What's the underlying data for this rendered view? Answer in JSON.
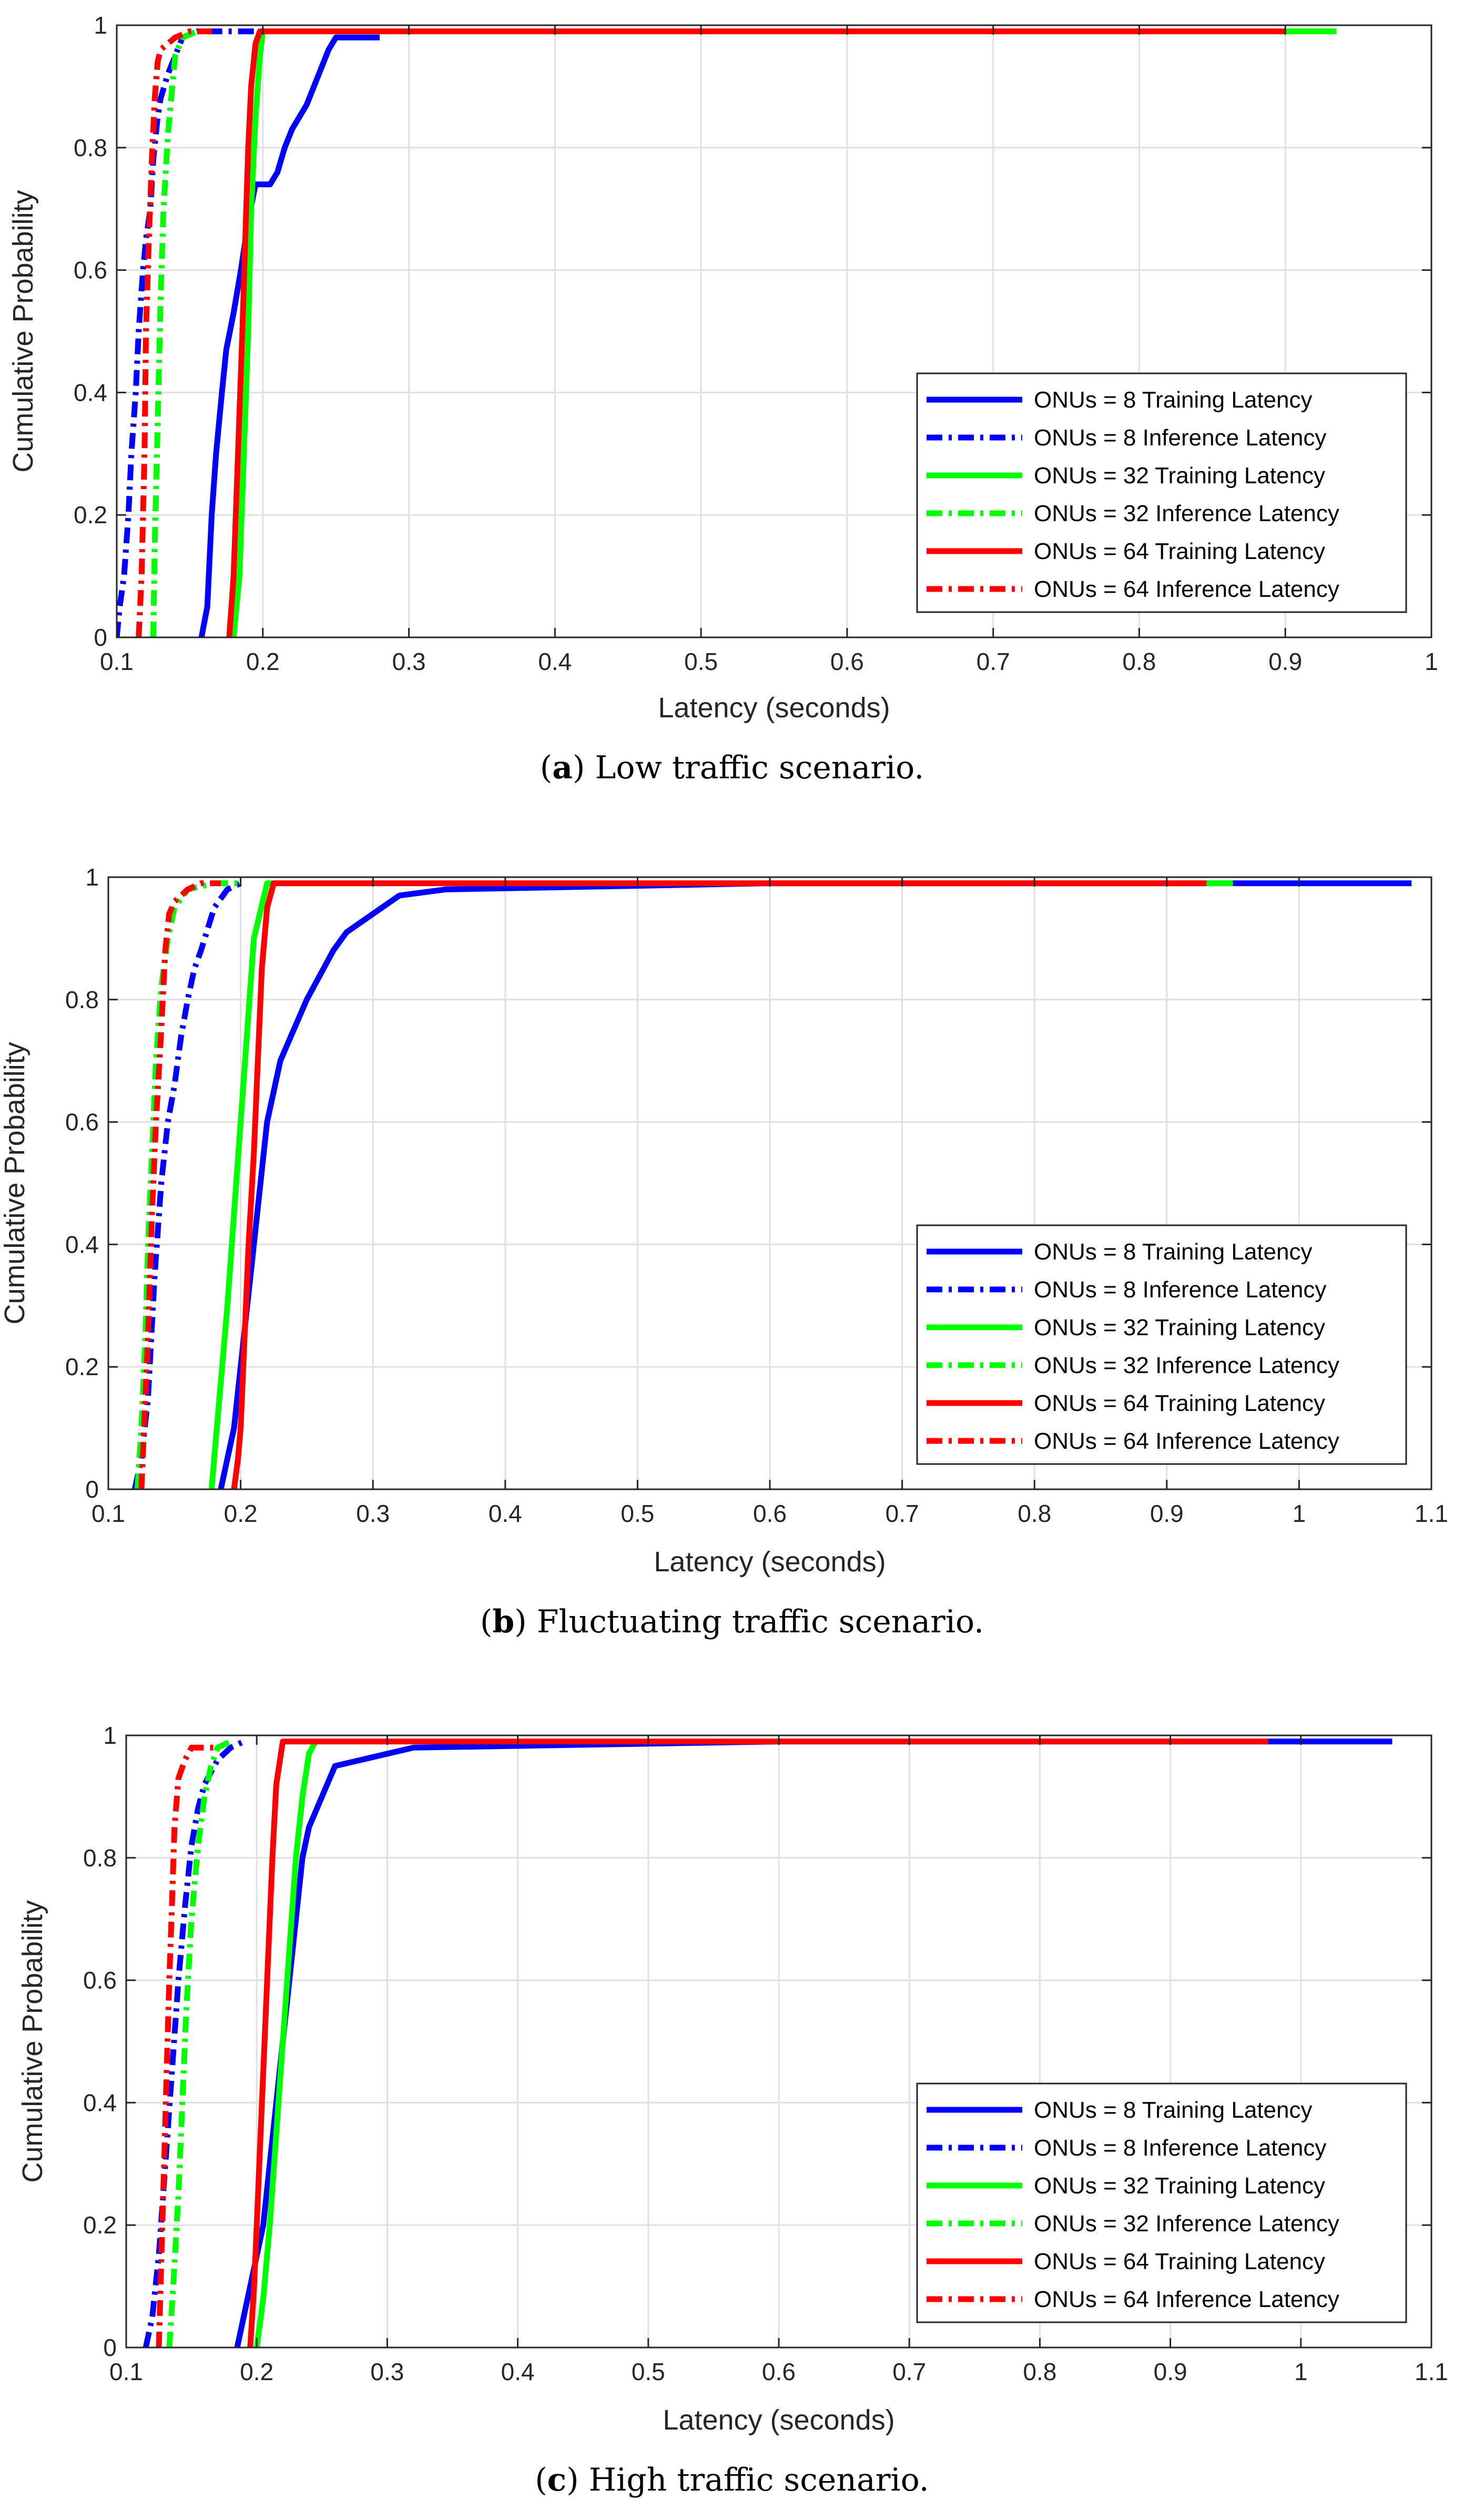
{
  "colors": {
    "blue": "#0000ff",
    "green": "#00ff00",
    "red": "#ff0000"
  },
  "chart_data": [
    {
      "type": "line",
      "title": "",
      "caption_letter": "a",
      "caption_text": " Low traffic scenario.",
      "xlabel": "Latency (seconds)",
      "ylabel": "Cumulative Probability",
      "xlim": [
        0.1,
        1.0
      ],
      "ylim": [
        0,
        1
      ],
      "xticks": [
        0.1,
        0.2,
        0.3,
        0.4,
        0.5,
        0.6,
        0.7,
        0.8,
        0.9,
        1
      ],
      "xticklabels": [
        "0.1",
        "0.2",
        "0.3",
        "0.4",
        "0.5",
        "0.6",
        "0.7",
        "0.8",
        "0.9",
        "1"
      ],
      "yticks": [
        0,
        0.2,
        0.4,
        0.6,
        0.8,
        1
      ],
      "yticklabels": [
        "0",
        "0.2",
        "0.4",
        "0.6",
        "0.8",
        "1"
      ],
      "grid": true,
      "legend_position": "bottom-right",
      "series": [
        {
          "name": "ONUs = 8 Training Latency",
          "color": "blue",
          "style": "solid",
          "x": [
            0.158,
            0.162,
            0.165,
            0.168,
            0.172,
            0.175,
            0.18,
            0.185,
            0.19,
            0.195,
            0.2,
            0.205,
            0.21,
            0.215,
            0.22,
            0.23,
            0.24,
            0.245,
            0.25,
            0.28
          ],
          "y": [
            0,
            0.05,
            0.2,
            0.3,
            0.4,
            0.47,
            0.53,
            0.6,
            0.68,
            0.74,
            0.74,
            0.74,
            0.76,
            0.8,
            0.83,
            0.87,
            0.93,
            0.96,
            0.98,
            0.98
          ]
        },
        {
          "name": "ONUs = 8 Inference Latency",
          "color": "blue",
          "style": "dashdot",
          "x": [
            0.1,
            0.102,
            0.105,
            0.108,
            0.11,
            0.113,
            0.115,
            0.118,
            0.12,
            0.123,
            0.125,
            0.128,
            0.13,
            0.135,
            0.14,
            0.145,
            0.155,
            0.195
          ],
          "y": [
            0,
            0.05,
            0.1,
            0.2,
            0.3,
            0.4,
            0.5,
            0.6,
            0.65,
            0.7,
            0.78,
            0.85,
            0.88,
            0.92,
            0.95,
            0.98,
            0.99,
            0.99
          ]
        },
        {
          "name": "ONUs = 32 Training Latency",
          "color": "green",
          "style": "solid",
          "x": [
            0.18,
            0.184,
            0.187,
            0.19,
            0.192,
            0.195,
            0.198,
            0.2,
            0.205,
            0.55,
            0.9,
            0.935
          ],
          "y": [
            0,
            0.1,
            0.3,
            0.5,
            0.7,
            0.85,
            0.95,
            0.99,
            0.99,
            0.99,
            0.99,
            0.99
          ]
        },
        {
          "name": "ONUs = 32 Inference Latency",
          "color": "green",
          "style": "dashdot",
          "x": [
            0.125,
            0.126,
            0.128,
            0.13,
            0.132,
            0.135,
            0.138,
            0.14,
            0.145,
            0.155,
            0.165
          ],
          "y": [
            0,
            0.15,
            0.35,
            0.55,
            0.7,
            0.82,
            0.9,
            0.95,
            0.98,
            0.99,
            0.99
          ]
        },
        {
          "name": "ONUs = 64 Training Latency",
          "color": "red",
          "style": "solid",
          "x": [
            0.177,
            0.18,
            0.183,
            0.186,
            0.188,
            0.19,
            0.192,
            0.195,
            0.198,
            0.5,
            0.9
          ],
          "y": [
            0,
            0.1,
            0.3,
            0.5,
            0.65,
            0.8,
            0.9,
            0.97,
            0.99,
            0.99,
            0.99
          ]
        },
        {
          "name": "ONUs = 64 Inference Latency",
          "color": "red",
          "style": "dashdot",
          "x": [
            0.115,
            0.117,
            0.119,
            0.12,
            0.122,
            0.124,
            0.126,
            0.128,
            0.13,
            0.14,
            0.15,
            0.165
          ],
          "y": [
            0,
            0.1,
            0.3,
            0.5,
            0.65,
            0.78,
            0.88,
            0.94,
            0.96,
            0.98,
            0.99,
            0.99
          ]
        }
      ]
    },
    {
      "type": "line",
      "title": "",
      "caption_letter": "b",
      "caption_text": " Fluctuating traffic scenario.",
      "xlabel": "Latency (seconds)",
      "ylabel": "Cumulative Probability",
      "xlim": [
        0.1,
        1.1
      ],
      "ylim": [
        0,
        1
      ],
      "xticks": [
        0.1,
        0.2,
        0.3,
        0.4,
        0.5,
        0.6,
        0.7,
        0.8,
        0.9,
        1,
        1.1
      ],
      "xticklabels": [
        "0.1",
        "0.2",
        "0.3",
        "0.4",
        "0.5",
        "0.6",
        "0.7",
        "0.8",
        "0.9",
        "1",
        "1.1"
      ],
      "yticks": [
        0,
        0.2,
        0.4,
        0.6,
        0.8,
        1
      ],
      "yticklabels": [
        "0",
        "0.2",
        "0.4",
        "0.6",
        "0.8",
        "1"
      ],
      "grid": true,
      "legend_position": "bottom-right",
      "series": [
        {
          "name": "ONUs = 8 Training Latency",
          "color": "blue",
          "style": "solid",
          "x": [
            0.185,
            0.19,
            0.195,
            0.2,
            0.205,
            0.21,
            0.215,
            0.22,
            0.225,
            0.23,
            0.24,
            0.25,
            0.26,
            0.27,
            0.28,
            0.3,
            0.32,
            0.355,
            0.6,
            1.0,
            1.085
          ],
          "y": [
            0,
            0.05,
            0.1,
            0.2,
            0.3,
            0.4,
            0.5,
            0.6,
            0.65,
            0.7,
            0.75,
            0.8,
            0.84,
            0.88,
            0.91,
            0.94,
            0.97,
            0.98,
            0.99,
            0.99,
            0.99
          ]
        },
        {
          "name": "ONUs = 8 Inference Latency",
          "color": "blue",
          "style": "dashdot",
          "x": [
            0.12,
            0.125,
            0.13,
            0.135,
            0.14,
            0.145,
            0.15,
            0.155,
            0.16,
            0.165,
            0.17,
            0.18,
            0.19,
            0.2
          ],
          "y": [
            0,
            0.05,
            0.15,
            0.35,
            0.5,
            0.6,
            0.66,
            0.74,
            0.8,
            0.85,
            0.88,
            0.95,
            0.98,
            0.99
          ]
        },
        {
          "name": "ONUs = 32 Training Latency",
          "color": "green",
          "style": "solid",
          "x": [
            0.178,
            0.182,
            0.186,
            0.19,
            0.195,
            0.2,
            0.205,
            0.21,
            0.22,
            0.5,
            0.93,
            0.95
          ],
          "y": [
            0,
            0.1,
            0.2,
            0.3,
            0.45,
            0.6,
            0.75,
            0.9,
            0.99,
            0.99,
            0.99,
            0.99
          ]
        },
        {
          "name": "ONUs = 32 Inference Latency",
          "color": "green",
          "style": "dashdot",
          "x": [
            0.122,
            0.125,
            0.128,
            0.13,
            0.133,
            0.136,
            0.14,
            0.145,
            0.15,
            0.16,
            0.18,
            0.2
          ],
          "y": [
            0,
            0.1,
            0.25,
            0.4,
            0.55,
            0.7,
            0.82,
            0.9,
            0.95,
            0.98,
            0.99,
            0.99
          ]
        },
        {
          "name": "ONUs = 64 Training Latency",
          "color": "red",
          "style": "solid",
          "x": [
            0.195,
            0.198,
            0.2,
            0.203,
            0.206,
            0.21,
            0.213,
            0.216,
            0.22,
            0.225,
            0.5,
            0.93
          ],
          "y": [
            0,
            0.05,
            0.1,
            0.25,
            0.4,
            0.55,
            0.7,
            0.85,
            0.95,
            0.99,
            0.99,
            0.99
          ]
        },
        {
          "name": "ONUs = 64 Inference Latency",
          "color": "red",
          "style": "dashdot",
          "x": [
            0.125,
            0.127,
            0.13,
            0.133,
            0.136,
            0.14,
            0.143,
            0.146,
            0.15,
            0.16,
            0.17,
            0.185
          ],
          "y": [
            0,
            0.1,
            0.25,
            0.45,
            0.6,
            0.75,
            0.88,
            0.94,
            0.96,
            0.98,
            0.99,
            0.99
          ]
        }
      ]
    },
    {
      "type": "line",
      "title": "",
      "caption_letter": "c",
      "caption_text": " High traffic scenario.",
      "xlabel": "Latency (seconds)",
      "ylabel": "Cumulative Probability",
      "xlim": [
        0.1,
        1.1
      ],
      "ylim": [
        0,
        1
      ],
      "xticks": [
        0.1,
        0.2,
        0.3,
        0.4,
        0.5,
        0.6,
        0.7,
        0.8,
        0.9,
        1,
        1.1
      ],
      "xticklabels": [
        "0.1",
        "0.2",
        "0.3",
        "0.4",
        "0.5",
        "0.6",
        "0.7",
        "0.8",
        "0.9",
        "1",
        "1.1"
      ],
      "yticks": [
        0,
        0.2,
        0.4,
        0.6,
        0.8,
        1
      ],
      "yticklabels": [
        "0",
        "0.2",
        "0.4",
        "0.6",
        "0.8",
        "1"
      ],
      "grid": true,
      "legend_position": "bottom-right",
      "series": [
        {
          "name": "ONUs = 8 Training Latency",
          "color": "blue",
          "style": "solid",
          "x": [
            0.185,
            0.19,
            0.195,
            0.2,
            0.205,
            0.21,
            0.215,
            0.22,
            0.225,
            0.23,
            0.235,
            0.24,
            0.25,
            0.26,
            0.32,
            0.6,
            0.97,
            1.07
          ],
          "y": [
            0,
            0.05,
            0.1,
            0.15,
            0.2,
            0.3,
            0.4,
            0.5,
            0.6,
            0.7,
            0.8,
            0.85,
            0.9,
            0.95,
            0.98,
            0.99,
            0.99,
            0.99
          ]
        },
        {
          "name": "ONUs = 8 Inference Latency",
          "color": "blue",
          "style": "dashdot",
          "x": [
            0.115,
            0.12,
            0.125,
            0.13,
            0.135,
            0.14,
            0.145,
            0.15,
            0.155,
            0.16,
            0.17,
            0.18,
            0.19
          ],
          "y": [
            0,
            0.05,
            0.15,
            0.3,
            0.45,
            0.6,
            0.72,
            0.82,
            0.88,
            0.92,
            0.96,
            0.98,
            0.99
          ]
        },
        {
          "name": "ONUs = 32 Training Latency",
          "color": "green",
          "style": "solid",
          "x": [
            0.2,
            0.205,
            0.21,
            0.215,
            0.22,
            0.225,
            0.23,
            0.235,
            0.24,
            0.245
          ],
          "y": [
            0,
            0.08,
            0.2,
            0.35,
            0.5,
            0.65,
            0.8,
            0.9,
            0.97,
            0.99
          ]
        },
        {
          "name": "ONUs = 32 Inference Latency",
          "color": "green",
          "style": "dashdot",
          "x": [
            0.133,
            0.136,
            0.14,
            0.143,
            0.146,
            0.15,
            0.155,
            0.16,
            0.165,
            0.17,
            0.18
          ],
          "y": [
            0,
            0.1,
            0.25,
            0.4,
            0.55,
            0.7,
            0.82,
            0.9,
            0.95,
            0.98,
            0.99
          ]
        },
        {
          "name": "ONUs = 64 Training Latency",
          "color": "red",
          "style": "solid",
          "x": [
            0.195,
            0.198,
            0.2,
            0.203,
            0.206,
            0.209,
            0.212,
            0.215,
            0.22,
            0.5,
            0.975
          ],
          "y": [
            0,
            0.1,
            0.2,
            0.35,
            0.5,
            0.65,
            0.8,
            0.92,
            0.99,
            0.99,
            0.99
          ]
        },
        {
          "name": "ONUs = 64 Inference Latency",
          "color": "red",
          "style": "dashdot",
          "x": [
            0.125,
            0.127,
            0.129,
            0.131,
            0.133,
            0.135,
            0.137,
            0.14,
            0.145,
            0.15,
            0.17
          ],
          "y": [
            0,
            0.15,
            0.3,
            0.45,
            0.6,
            0.72,
            0.85,
            0.93,
            0.96,
            0.98,
            0.98
          ]
        }
      ]
    }
  ]
}
